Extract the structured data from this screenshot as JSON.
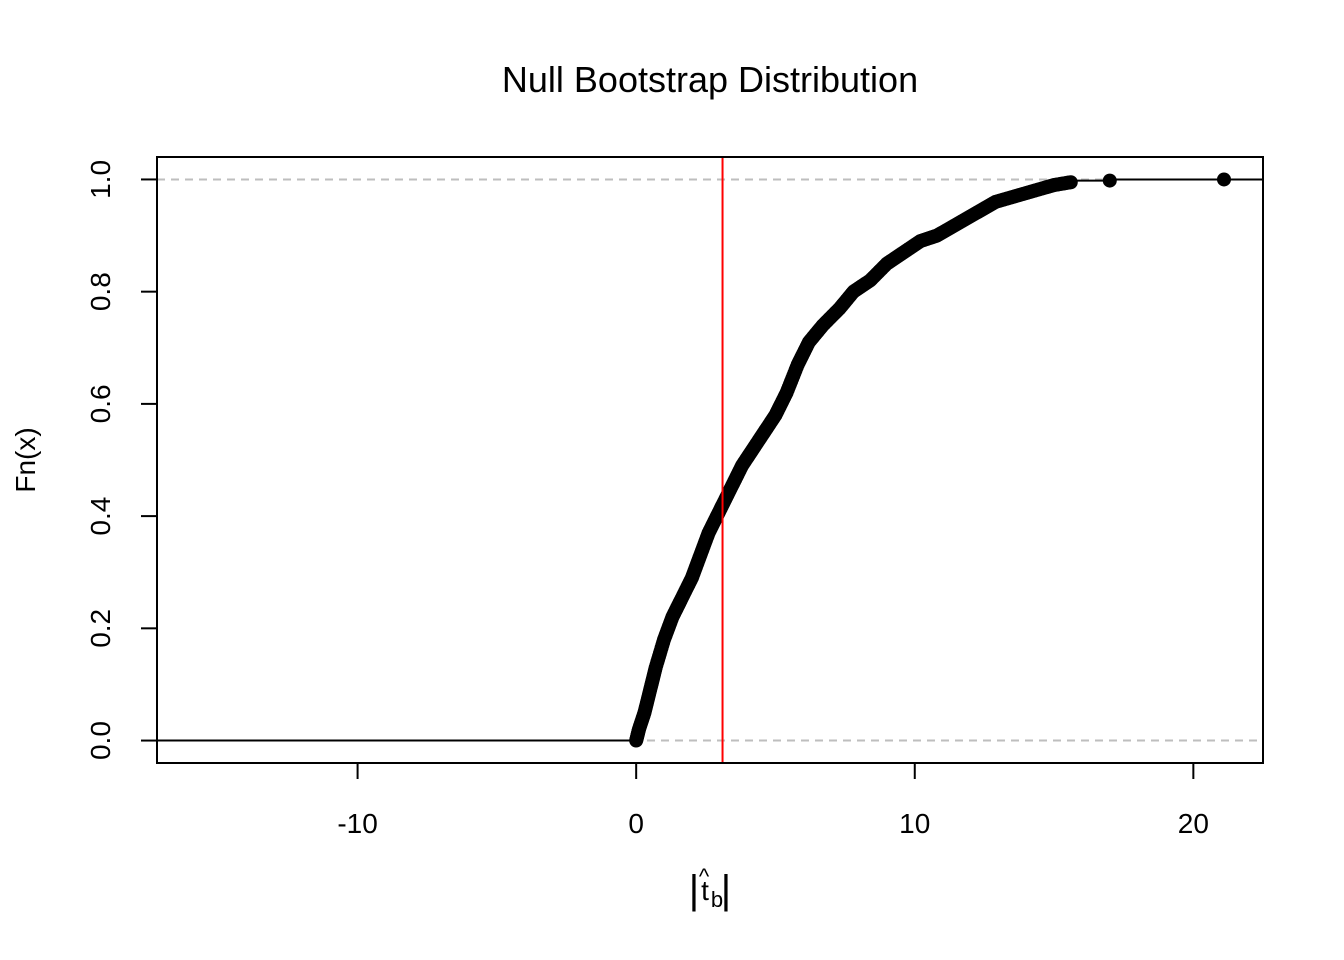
{
  "chart_data": {
    "type": "ecdf",
    "title": "Null Bootstrap Distribution",
    "ylabel": "Fn(x)",
    "xlabel": {
      "base": "t",
      "accent": "^",
      "subscript": "b",
      "delimiter": "|"
    },
    "xlim": [
      -17.2,
      22.5
    ],
    "ylim": [
      -0.04,
      1.04
    ],
    "x_ticks": [
      -10,
      0,
      10,
      20
    ],
    "y_ticks": [
      0.0,
      0.2,
      0.4,
      0.6,
      0.8,
      1.0
    ],
    "x_tick_labels": [
      "-10",
      "0",
      "10",
      "20"
    ],
    "y_tick_labels": [
      "0.0",
      "0.2",
      "0.4",
      "0.6",
      "0.8",
      "1.0"
    ],
    "reference_hlines": [
      0,
      1
    ],
    "vline": {
      "x": 3.1,
      "color": "#ff0000"
    },
    "cdf_curve": [
      [
        0.0,
        0.0
      ],
      [
        0.1,
        0.02
      ],
      [
        0.3,
        0.05
      ],
      [
        0.5,
        0.09
      ],
      [
        0.7,
        0.13
      ],
      [
        1.0,
        0.18
      ],
      [
        1.3,
        0.22
      ],
      [
        1.6,
        0.25
      ],
      [
        2.0,
        0.29
      ],
      [
        2.3,
        0.33
      ],
      [
        2.6,
        0.37
      ],
      [
        3.0,
        0.41
      ],
      [
        3.4,
        0.45
      ],
      [
        3.8,
        0.49
      ],
      [
        4.2,
        0.52
      ],
      [
        4.6,
        0.55
      ],
      [
        5.0,
        0.58
      ],
      [
        5.4,
        0.62
      ],
      [
        5.8,
        0.67
      ],
      [
        6.2,
        0.71
      ],
      [
        6.7,
        0.74
      ],
      [
        7.3,
        0.77
      ],
      [
        7.8,
        0.8
      ],
      [
        8.4,
        0.82
      ],
      [
        9.0,
        0.85
      ],
      [
        9.6,
        0.87
      ],
      [
        10.2,
        0.89
      ],
      [
        10.8,
        0.9
      ],
      [
        11.5,
        0.92
      ],
      [
        12.2,
        0.94
      ],
      [
        12.9,
        0.96
      ],
      [
        13.6,
        0.97
      ],
      [
        14.3,
        0.98
      ],
      [
        15.0,
        0.99
      ],
      [
        15.6,
        0.995
      ]
    ],
    "outlier_points": [
      [
        17.0,
        0.998
      ],
      [
        21.1,
        1.0
      ]
    ],
    "colors": {
      "points": "#000000",
      "vline": "#ff0000",
      "reference": "#bebebe"
    }
  }
}
